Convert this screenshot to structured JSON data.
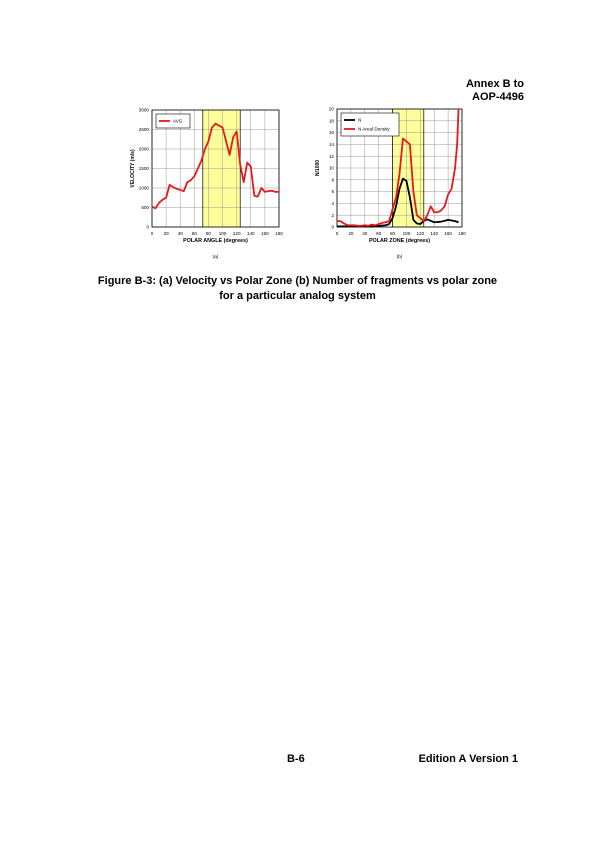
{
  "header": {
    "line1": "Annex B to",
    "line2": "AOP-4496"
  },
  "caption": {
    "line1": "Figure B-3: (a) Velocity vs Polar Zone (b) Number of fragments vs polar zone",
    "line2": "for a particular analog system"
  },
  "footer": {
    "page": "B-6",
    "edition": "Edition A Version 1"
  },
  "chart_data": [
    {
      "type": "line",
      "panel_label": "(a)",
      "xlabel": "POLAR ANGLE (degrees)",
      "ylabel": "VELOCITY (m/s)",
      "xlim": [
        0,
        180
      ],
      "ylim": [
        0,
        3000
      ],
      "xticks": [
        0,
        20,
        40,
        60,
        80,
        100,
        120,
        140,
        160,
        180
      ],
      "yticks": [
        0,
        500,
        1000,
        1500,
        2000,
        2500,
        3000
      ],
      "grid": true,
      "legend_position": "top-left",
      "highlight_band": {
        "x_from": 72,
        "x_to": 125,
        "color": "#ffff99"
      },
      "series": [
        {
          "name": "AVG",
          "color": "#e41a1c",
          "x": [
            0,
            5,
            10,
            15,
            20,
            25,
            30,
            35,
            40,
            45,
            50,
            55,
            60,
            65,
            70,
            75,
            80,
            85,
            90,
            95,
            100,
            105,
            110,
            115,
            120,
            125,
            130,
            135,
            140,
            145,
            150,
            155,
            160,
            165,
            170,
            175,
            180
          ],
          "y": [
            520,
            480,
            620,
            700,
            750,
            1080,
            1020,
            980,
            950,
            920,
            1150,
            1200,
            1300,
            1500,
            1700,
            2000,
            2200,
            2550,
            2650,
            2600,
            2550,
            2200,
            1850,
            2300,
            2450,
            1600,
            1150,
            1650,
            1550,
            800,
            780,
            1000,
            900,
            920,
            930,
            900,
            900
          ]
        }
      ]
    },
    {
      "type": "line",
      "panel_label": "(b)",
      "xlabel": "POLAR ZONE (degrees)",
      "ylabel": "N/1000",
      "xlim": [
        0,
        180
      ],
      "ylim": [
        0,
        20
      ],
      "xticks": [
        0,
        20,
        40,
        60,
        80,
        100,
        120,
        140,
        160,
        180
      ],
      "yticks": [
        0,
        2,
        4,
        6,
        8,
        10,
        12,
        14,
        16,
        18,
        20
      ],
      "grid": true,
      "legend_position": "top-left",
      "highlight_band": {
        "x_from": 80,
        "x_to": 125,
        "color": "#ffff99"
      },
      "series": [
        {
          "name": "N",
          "color": "#000000",
          "x": [
            0,
            10,
            20,
            30,
            40,
            50,
            60,
            70,
            75,
            80,
            85,
            90,
            95,
            100,
            105,
            110,
            115,
            120,
            125,
            130,
            140,
            150,
            160,
            170,
            175
          ],
          "y": [
            0.1,
            0.1,
            0.1,
            0.1,
            0.1,
            0.1,
            0.2,
            0.3,
            0.5,
            1.5,
            3.5,
            6.5,
            8.2,
            7.8,
            5,
            1.2,
            0.6,
            0.5,
            1,
            1.3,
            0.8,
            0.9,
            1.2,
            1,
            0.8
          ]
        },
        {
          "name": "N Areal Density",
          "color": "#e41a1c",
          "x": [
            0,
            5,
            10,
            15,
            20,
            25,
            30,
            35,
            40,
            45,
            50,
            55,
            60,
            65,
            70,
            75,
            80,
            85,
            90,
            95,
            100,
            105,
            110,
            115,
            120,
            125,
            130,
            135,
            140,
            145,
            150,
            155,
            160,
            165,
            170,
            173,
            175
          ],
          "y": [
            1,
            1,
            0.6,
            0.3,
            0.3,
            0.3,
            0.2,
            0.2,
            0.3,
            0.2,
            0.4,
            0.3,
            0.5,
            0.7,
            0.8,
            1,
            3,
            5,
            9,
            15,
            14.5,
            14,
            6,
            2,
            1.5,
            1,
            2,
            3.5,
            2.5,
            2.5,
            2.8,
            3.5,
            5.5,
            6.5,
            10,
            14,
            20
          ]
        }
      ]
    }
  ]
}
